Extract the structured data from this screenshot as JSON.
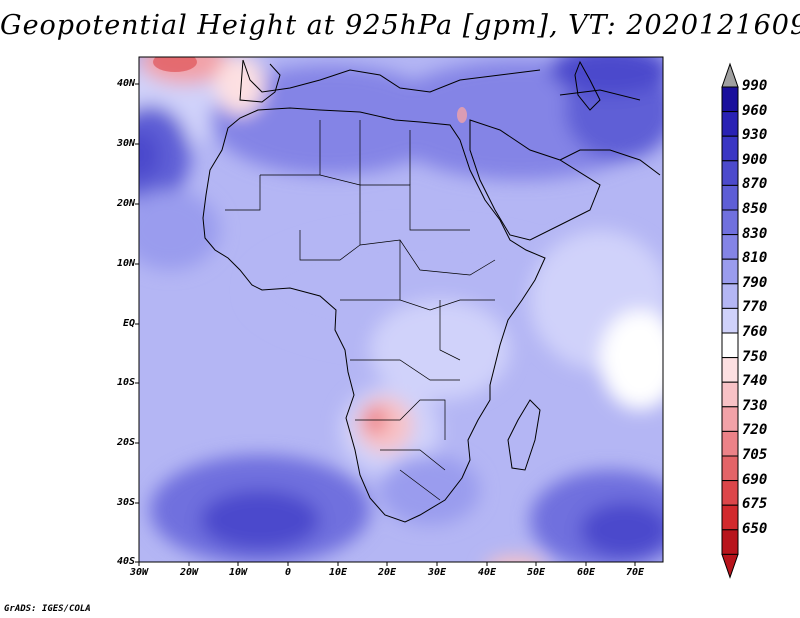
{
  "title": "Geopotential Height at 925hPa [gpm], VT: 2020121609",
  "credit": "GrADS: IGES/COLA",
  "lat_labels": [
    "40N",
    "30N",
    "20N",
    "10N",
    "EQ",
    "10S",
    "20S",
    "30S",
    "40S"
  ],
  "lon_labels": [
    "30W",
    "20W",
    "10W",
    "0",
    "10E",
    "20E",
    "30E",
    "40E",
    "50E",
    "60E",
    "70E"
  ],
  "colorbar": {
    "labels": [
      "990",
      "960",
      "930",
      "900",
      "870",
      "850",
      "830",
      "810",
      "790",
      "770",
      "760",
      "750",
      "740",
      "730",
      "720",
      "705",
      "690",
      "675",
      "650"
    ],
    "colors": [
      "#1a0f9c",
      "#2a22b4",
      "#3a36c4",
      "#4c4acc",
      "#5e5ed6",
      "#7070de",
      "#8484e6",
      "#9a9cee",
      "#b4b6f4",
      "#d0d2fa",
      "#ffffff",
      "#fde0e2",
      "#f8c2c6",
      "#f2a2a8",
      "#ec8288",
      "#e46468",
      "#dc464a",
      "#d2292d",
      "#b8141c"
    ],
    "top_arrow_color": "#a0a0a0",
    "bottom_arrow_color": "#b8141c"
  }
}
